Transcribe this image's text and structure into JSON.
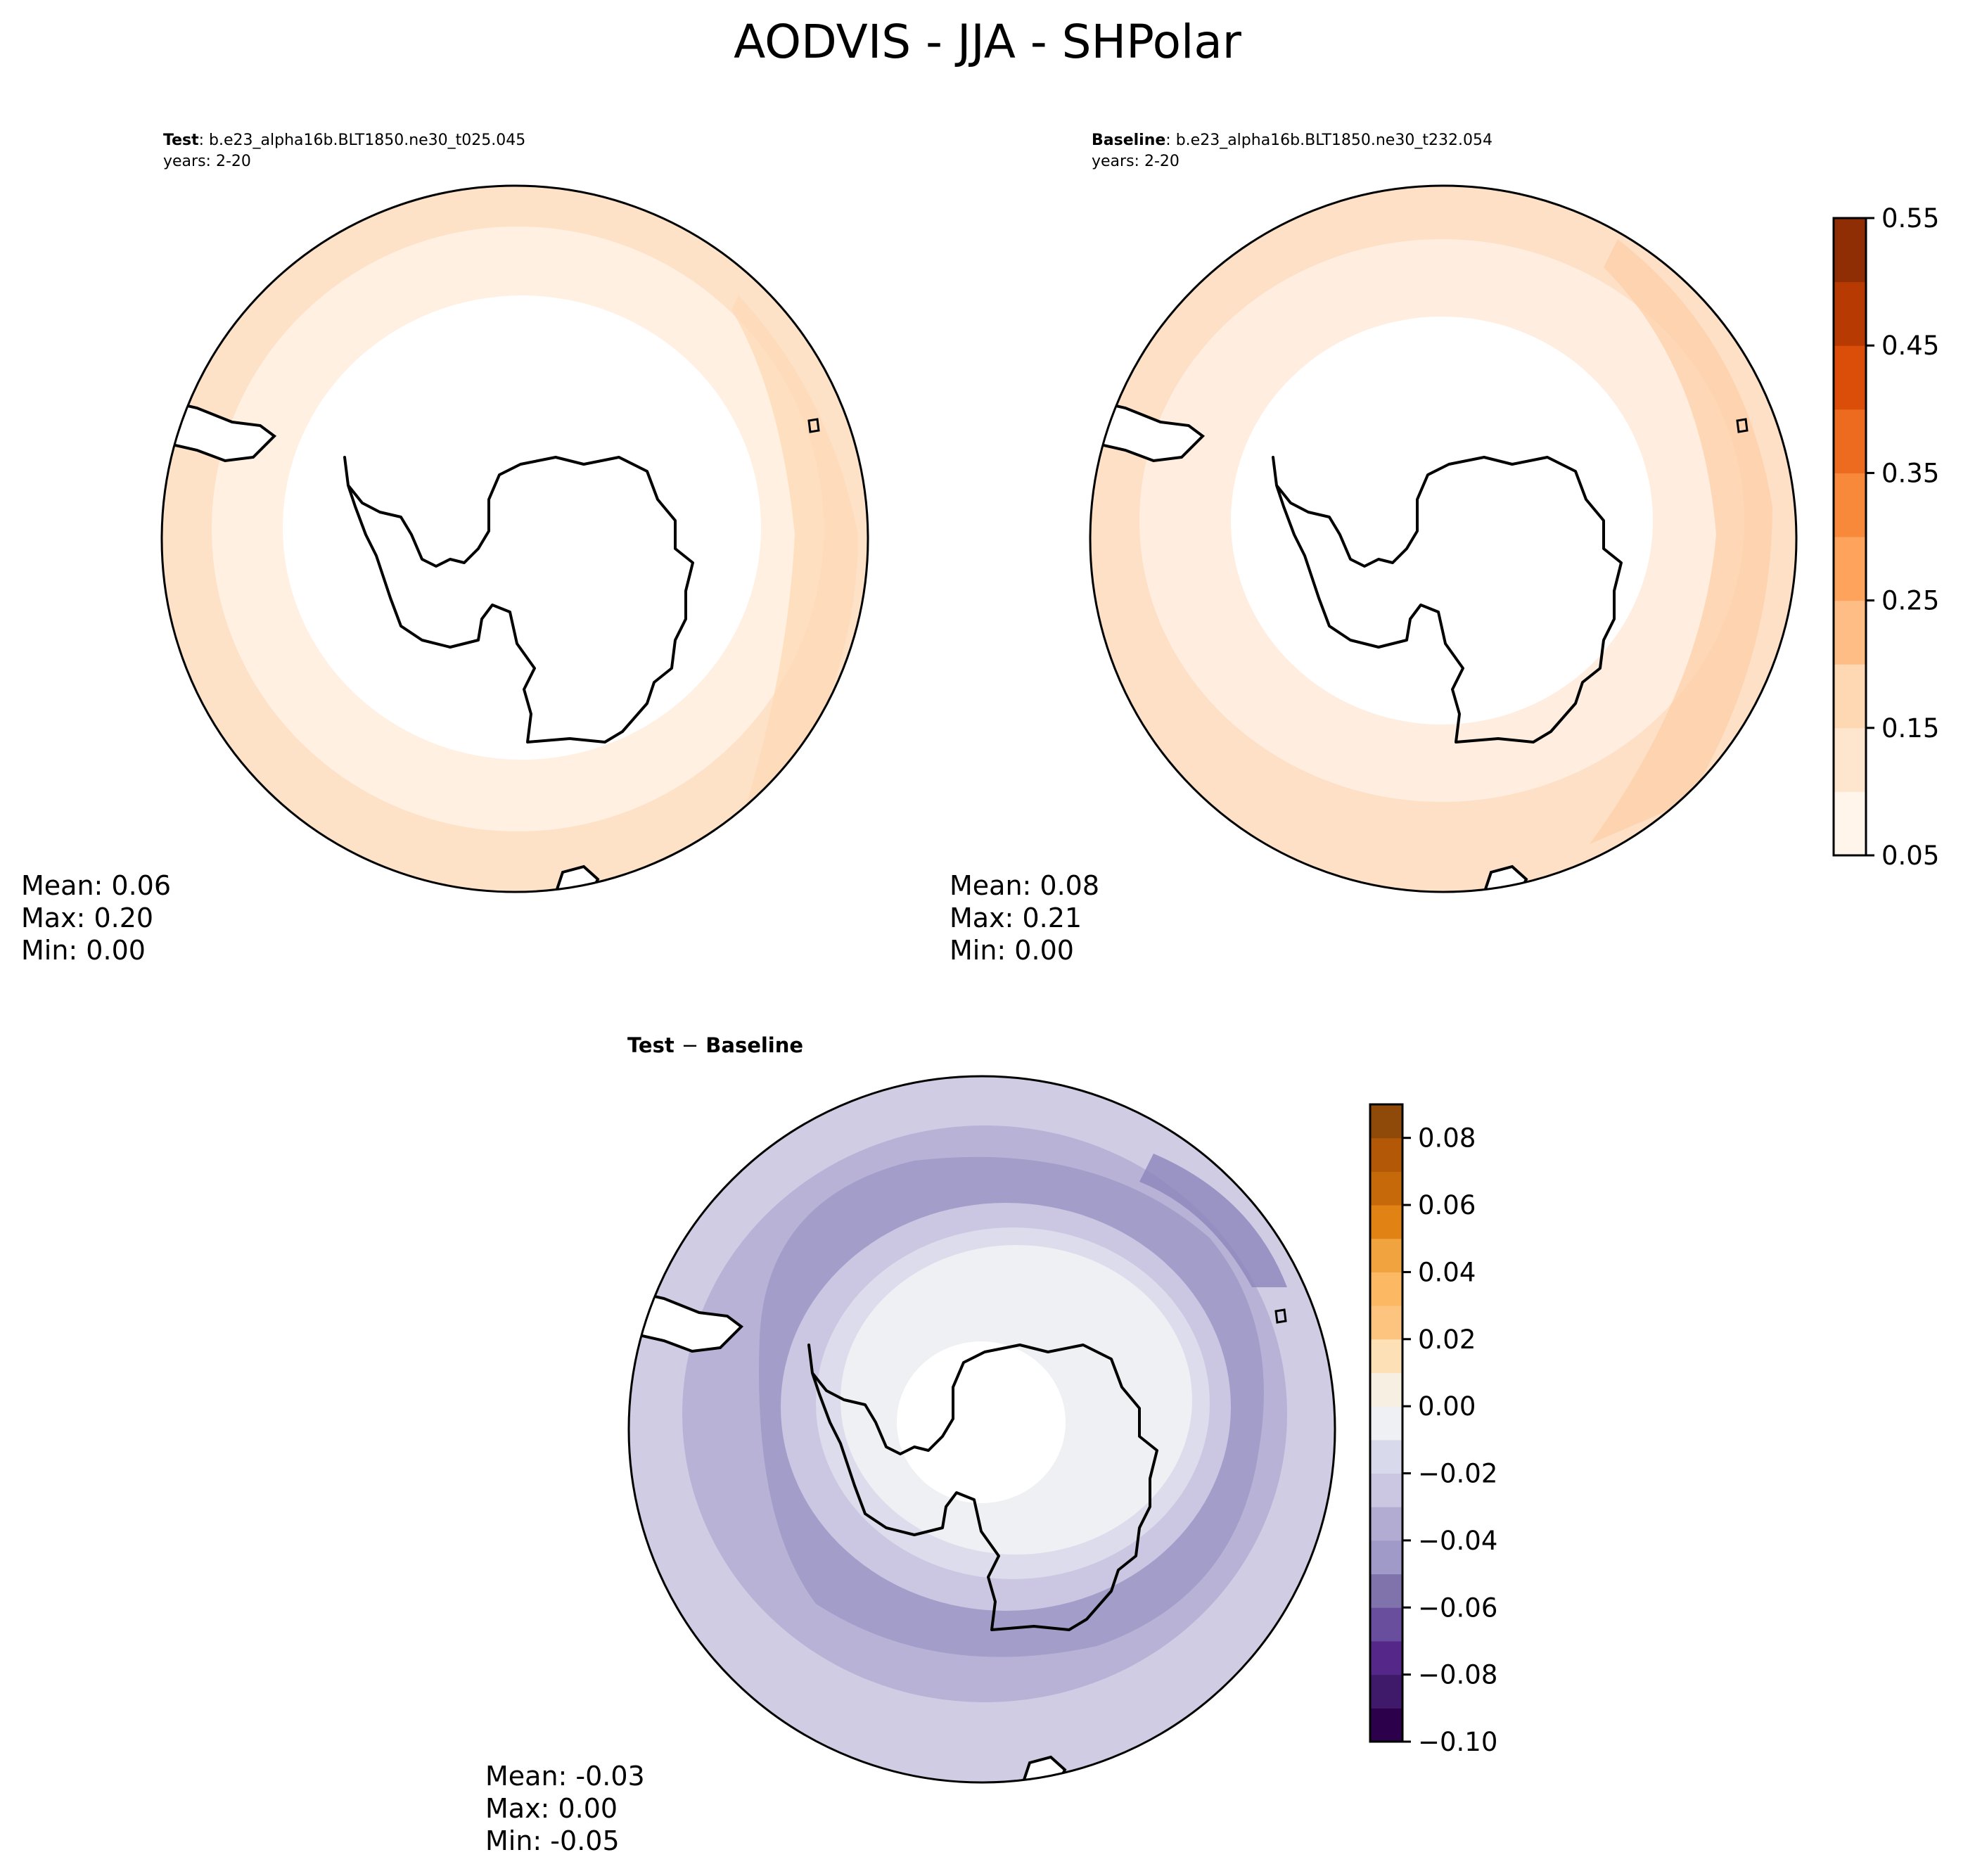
{
  "figure": {
    "title": "AODVIS - JJA - SHPolar"
  },
  "panels": {
    "test": {
      "label_bold": "Test",
      "label_case": ": b.e23_alpha16b.BLT1850.ne30_t025.045",
      "years": "years: 2-20",
      "stats": {
        "mean": "Mean:  0.06",
        "max": "Max:  0.20",
        "min": "Min:  0.00"
      }
    },
    "baseline": {
      "label_bold": "Baseline",
      "label_case": ": b.e23_alpha16b.BLT1850.ne30_t232.054",
      "years": "years: 2-20",
      "stats": {
        "mean": "Mean:  0.08",
        "max": "Max:  0.21",
        "min": "Min:  0.00"
      }
    },
    "diff": {
      "label_left": "Test",
      "label_op": "−",
      "label_right": "Baseline",
      "stats": {
        "mean": "Mean: -0.03",
        "max": "Max:  0.00",
        "min": "Min: -0.05"
      }
    }
  },
  "chart_data": [
    {
      "type": "heatmap",
      "projection": "south polar stereographic",
      "panel": "test",
      "bands_center_to_edge": [
        0.05,
        0.1,
        0.15
      ],
      "mean": 0.06,
      "max": 0.2,
      "min": 0.0
    },
    {
      "type": "heatmap",
      "projection": "south polar stereographic",
      "panel": "baseline",
      "bands_center_to_edge": [
        0.05,
        0.1,
        0.15
      ],
      "mean": 0.08,
      "max": 0.21,
      "min": 0.0
    },
    {
      "type": "heatmap",
      "projection": "south polar stereographic",
      "panel": "diff",
      "bands_center_to_edge": [
        0.0,
        -0.01,
        -0.02,
        -0.03,
        -0.04,
        -0.03,
        -0.02
      ],
      "mean": -0.03,
      "max": 0.0,
      "min": -0.05
    }
  ],
  "colorbars": {
    "main": {
      "levels": [
        0.05,
        0.1,
        0.15,
        0.2,
        0.25,
        0.3,
        0.35,
        0.4,
        0.45,
        0.5,
        0.55
      ],
      "colors": [
        "#fff5eb",
        "#fee6ce",
        "#fdd8b3",
        "#fdbd84",
        "#fda35c",
        "#f8883a",
        "#ec6b1e",
        "#da4e09",
        "#b73a02",
        "#8f2d04"
      ],
      "ticks": [
        "0.05",
        "0.15",
        "0.25",
        "0.35",
        "0.45",
        "0.55"
      ],
      "tick_values": [
        0.05,
        0.15,
        0.25,
        0.35,
        0.45,
        0.55
      ]
    },
    "diff": {
      "levels": [
        -0.1,
        -0.09,
        -0.08,
        -0.07,
        -0.06,
        -0.05,
        -0.04,
        -0.03,
        -0.02,
        -0.01,
        0.0,
        0.01,
        0.02,
        0.03,
        0.04,
        0.05,
        0.06,
        0.07,
        0.08,
        0.09
      ],
      "colors": [
        "#2d004b",
        "#3f1a6a",
        "#542788",
        "#6a4e9e",
        "#8073ac",
        "#a09ac8",
        "#b2abd2",
        "#cbc6e1",
        "#d8daeb",
        "#eef0f3",
        "#f7efe1",
        "#fee0b6",
        "#fdc47f",
        "#fdb863",
        "#f1a340",
        "#e08214",
        "#c6690b",
        "#b35806",
        "#8f4a09"
      ],
      "ticks": [
        "−0.10",
        "−0.08",
        "−0.06",
        "−0.04",
        "−0.02",
        "0.00",
        "0.02",
        "0.04",
        "0.06",
        "0.08"
      ],
      "tick_values": [
        -0.1,
        -0.08,
        -0.06,
        -0.04,
        -0.02,
        0.0,
        0.02,
        0.04,
        0.06,
        0.08
      ]
    }
  },
  "colors": {
    "test_bands": [
      "#ffffff",
      "#fff0e2",
      "#fde2c8"
    ],
    "baseline_bands": [
      "#ffffff",
      "#ffeee0",
      "#fde0c5"
    ],
    "diff_bands": [
      "#ffffff",
      "#eff0f3",
      "#dcdcec",
      "#cbc6e1",
      "#a39ec9",
      "#b8b3d6",
      "#cfcce4"
    ],
    "coast": "#000000"
  }
}
